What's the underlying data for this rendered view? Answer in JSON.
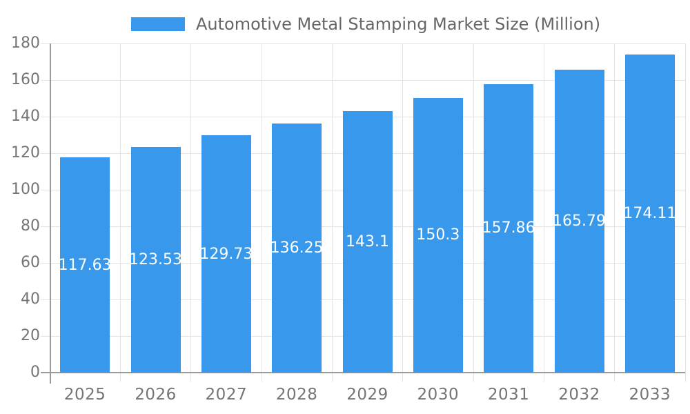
{
  "legend": {
    "label": "Automotive Metal Stamping Market Size (Million)"
  },
  "chart_data": {
    "type": "bar",
    "title": "Automotive Metal Stamping Market Size (Million)",
    "series_name": "Automotive Metal Stamping Market Size (Million)",
    "categories": [
      "2025",
      "2026",
      "2027",
      "2028",
      "2029",
      "2030",
      "2031",
      "2032",
      "2033"
    ],
    "values": [
      117.63,
      123.53,
      129.73,
      136.25,
      143.1,
      150.3,
      157.86,
      165.79,
      174.11
    ],
    "bar_labels": [
      "117.63",
      "123.53",
      "129.73",
      "136.25",
      "143.1",
      "150.3",
      "157.86",
      "165.79",
      "174.11"
    ],
    "bar_label_position": "middle",
    "xlabel": "",
    "ylabel": "",
    "ylim": [
      0,
      180
    ],
    "ytick_step": 20,
    "yticks": [
      0,
      20,
      40,
      60,
      80,
      100,
      120,
      140,
      160,
      180
    ],
    "grid": true,
    "legend_position": "top"
  },
  "colors": {
    "bar": "#3898ec",
    "bar_label": "#ffffff",
    "axis_line": "#9a9a9a",
    "grid_line": "#e3e3e3",
    "tick_label": "#757575",
    "legend_text": "#666666",
    "background": "#ffffff"
  }
}
